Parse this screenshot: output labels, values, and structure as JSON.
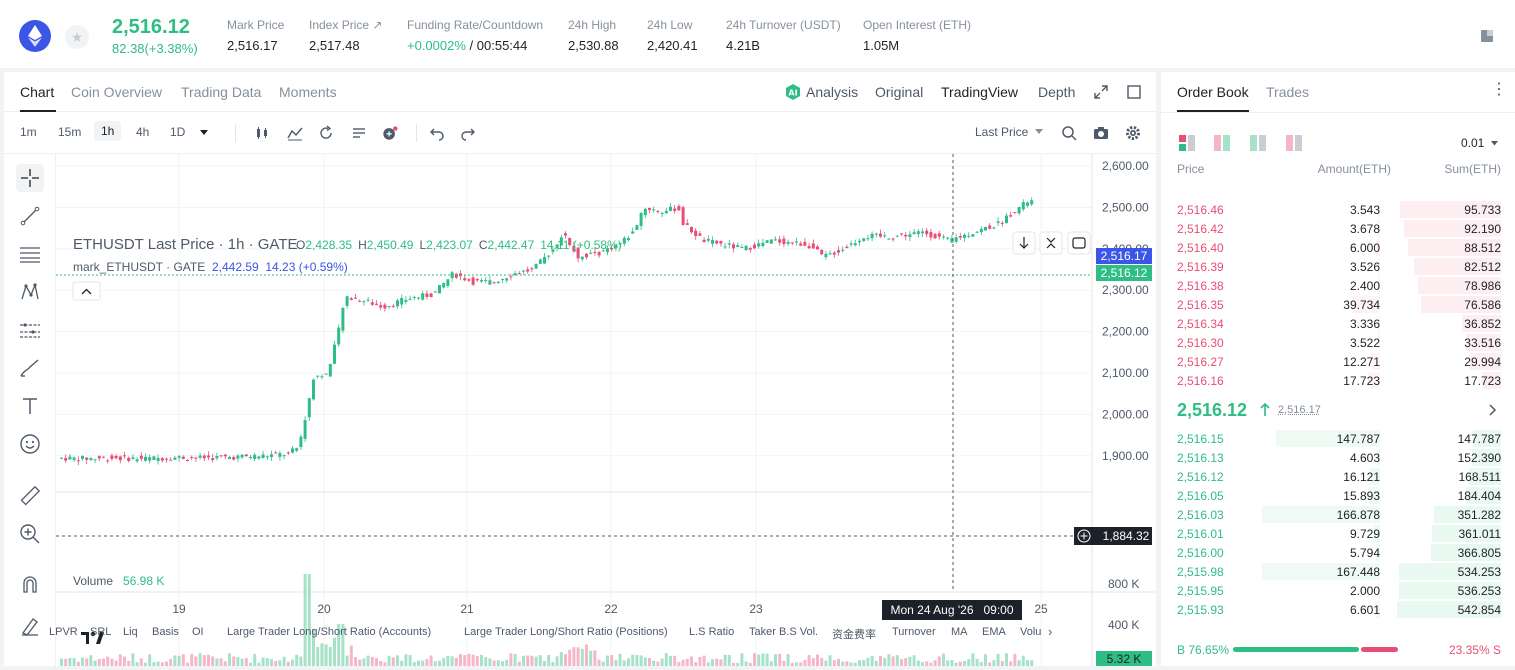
{
  "ticker": {
    "last_price": "2,516.12",
    "change": "82.38(+3.38%)",
    "stats": [
      {
        "label": "Mark Price",
        "value": "2,516.17"
      },
      {
        "label": "Index Price ↗",
        "value": "2,517.48"
      },
      {
        "label": "Funding Rate/Countdown",
        "value_green": "+0.0002%",
        "value": "/ 00:55:44"
      },
      {
        "label": "24h High",
        "value": "2,530.88"
      },
      {
        "label": "24h Low",
        "value": "2,420.41"
      },
      {
        "label": "24h Turnover (USDT)",
        "value": "4.21B"
      },
      {
        "label": "Open Interest (ETH)",
        "value": "1.05M"
      }
    ]
  },
  "chart_tabs": [
    "Chart",
    "Coin Overview",
    "Trading Data",
    "Moments"
  ],
  "view_tabs": [
    "Analysis",
    "Original",
    "TradingView",
    "Depth"
  ],
  "timeframes": [
    "1m",
    "15m",
    "1h",
    "4h",
    "1D"
  ],
  "price_source": "Last Price",
  "legend": {
    "line1_name": "ETHUSDT Last Price · 1h · GATE",
    "o": "2,428.35",
    "h": "2,450.49",
    "l": "2,423.07",
    "c": "2,442.47",
    "chg": "14.11 (+0.58%)",
    "line2_name": "mark_ETHUSDT · GATE",
    "line2_vals": "2,442.59  14.23 (+0.59%)"
  },
  "volume_label": "Volume",
  "volume_value": "56.98 K",
  "price_axis": [
    "2,600.00",
    "2,500.00",
    "2,400.00",
    "2,300.00",
    "2,200.00",
    "2,100.00",
    "2,000.00",
    "1,900.00"
  ],
  "price_tag_blue": "2,516.17",
  "price_tag_green": "2,516.12",
  "crosshair_price": "1,884.32",
  "volume_axis": [
    "800 K",
    "400 K"
  ],
  "volume_tag": "5.32 K",
  "x_axis": [
    "19",
    "20",
    "21",
    "22",
    "23",
    "25"
  ],
  "crosshair_time": "Mon 24 Aug '26   09:00",
  "indicator_bar": [
    "LPVR",
    "SRL",
    "Liq",
    "Basis",
    "OI",
    "Large Trader Long/Short Ratio (Accounts)",
    "Large Trader Long/Short Ratio (Positions)",
    "L.S Ratio",
    "Taker B.S Vol.",
    "资金费率",
    "Turnover",
    "MA",
    "EMA",
    "Volu"
  ],
  "orderbook": {
    "tabs": [
      "Order Book",
      "Trades"
    ],
    "precision": "0.01",
    "headers": [
      "Price",
      "Amount(ETH)",
      "Sum(ETH)"
    ],
    "asks": [
      [
        "2,516.46",
        "3.543",
        "95.733"
      ],
      [
        "2,516.42",
        "3.678",
        "92.190"
      ],
      [
        "2,516.40",
        "6.000",
        "88.512"
      ],
      [
        "2,516.39",
        "3.526",
        "82.512"
      ],
      [
        "2,516.38",
        "2.400",
        "78.986"
      ],
      [
        "2,516.35",
        "39.734",
        "76.586"
      ],
      [
        "2,516.34",
        "3.336",
        "36.852"
      ],
      [
        "2,516.30",
        "3.522",
        "33.516"
      ],
      [
        "2,516.27",
        "12.271",
        "29.994"
      ],
      [
        "2,516.16",
        "17.723",
        "17.723"
      ]
    ],
    "mid_price": "2,516.12",
    "mid_mark": "2,516.17",
    "bids": [
      [
        "2,516.15",
        "147.787",
        "147.787"
      ],
      [
        "2,516.13",
        "4.603",
        "152.390"
      ],
      [
        "2,516.12",
        "16.121",
        "168.511"
      ],
      [
        "2,516.05",
        "15.893",
        "184.404"
      ],
      [
        "2,516.03",
        "166.878",
        "351.282"
      ],
      [
        "2,516.01",
        "9.729",
        "361.011"
      ],
      [
        "2,516.00",
        "5.794",
        "366.805"
      ],
      [
        "2,515.98",
        "167.448",
        "534.253"
      ],
      [
        "2,515.95",
        "2.000",
        "536.253"
      ],
      [
        "2,515.93",
        "6.601",
        "542.854"
      ]
    ],
    "buy_ratio": "B 76.65%",
    "sell_ratio": "23.35% S",
    "buy_fraction": 0.7665
  },
  "colors": {
    "up": "#2ebd85",
    "down": "#e84e74",
    "accent": "#3b55e6"
  }
}
